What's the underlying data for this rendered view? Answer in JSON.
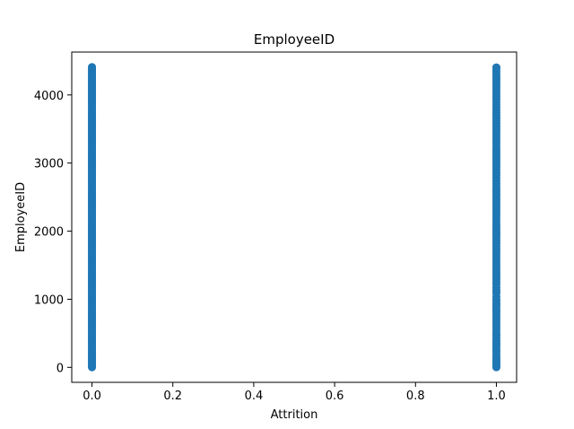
{
  "chart_data": {
    "type": "scatter",
    "title": "EmployeeID",
    "xlabel": "Attrition",
    "ylabel": "EmployeeID",
    "xlim": [
      -0.05,
      1.05
    ],
    "ylim": [
      -220,
      4630
    ],
    "xticks": [
      0.0,
      0.2,
      0.4,
      0.6,
      0.8,
      1.0
    ],
    "xtick_labels": [
      "0.0",
      "0.2",
      "0.4",
      "0.6",
      "0.8",
      "1.0"
    ],
    "yticks": [
      0,
      1000,
      2000,
      3000,
      4000
    ],
    "ytick_labels": [
      "0",
      "1000",
      "2000",
      "3000",
      "4000"
    ],
    "grid": false,
    "color": "#1f77b4",
    "series": [
      {
        "x_value": 0,
        "y_min": 1,
        "y_max": 4410,
        "y_step": 20,
        "note_shown": "dense column of points"
      },
      {
        "x_value": 1,
        "y_values": [
          2,
          25,
          45,
          70,
          100,
          130,
          160,
          200,
          240,
          280,
          320,
          350,
          390,
          430,
          470,
          500,
          540,
          580,
          620,
          660,
          700,
          740,
          780,
          820,
          860,
          900,
          930,
          970,
          1000,
          1040,
          1090,
          1130,
          1170,
          1220,
          1260,
          1300,
          1340,
          1380,
          1420,
          1460,
          1500,
          1540,
          1580,
          1620,
          1660,
          1700,
          1740,
          1780,
          1820,
          1860,
          1900,
          1940,
          1980,
          2020,
          2060,
          2100,
          2140,
          2180,
          2220,
          2260,
          2300,
          2340,
          2380,
          2420,
          2460,
          2500,
          2540,
          2580,
          2620,
          2660,
          2700,
          2740,
          2780,
          2820,
          2860,
          2900,
          2940,
          2980,
          3020,
          3060,
          3100,
          3140,
          3180,
          3220,
          3260,
          3300,
          3340,
          3380,
          3420,
          3460,
          3500,
          3540,
          3580,
          3620,
          3660,
          3700,
          3740,
          3780,
          3820,
          3860,
          3900,
          3940,
          3980,
          4020,
          4060,
          4100,
          4140,
          4180,
          4220,
          4260,
          4300,
          4340,
          4380,
          4405
        ]
      }
    ]
  }
}
